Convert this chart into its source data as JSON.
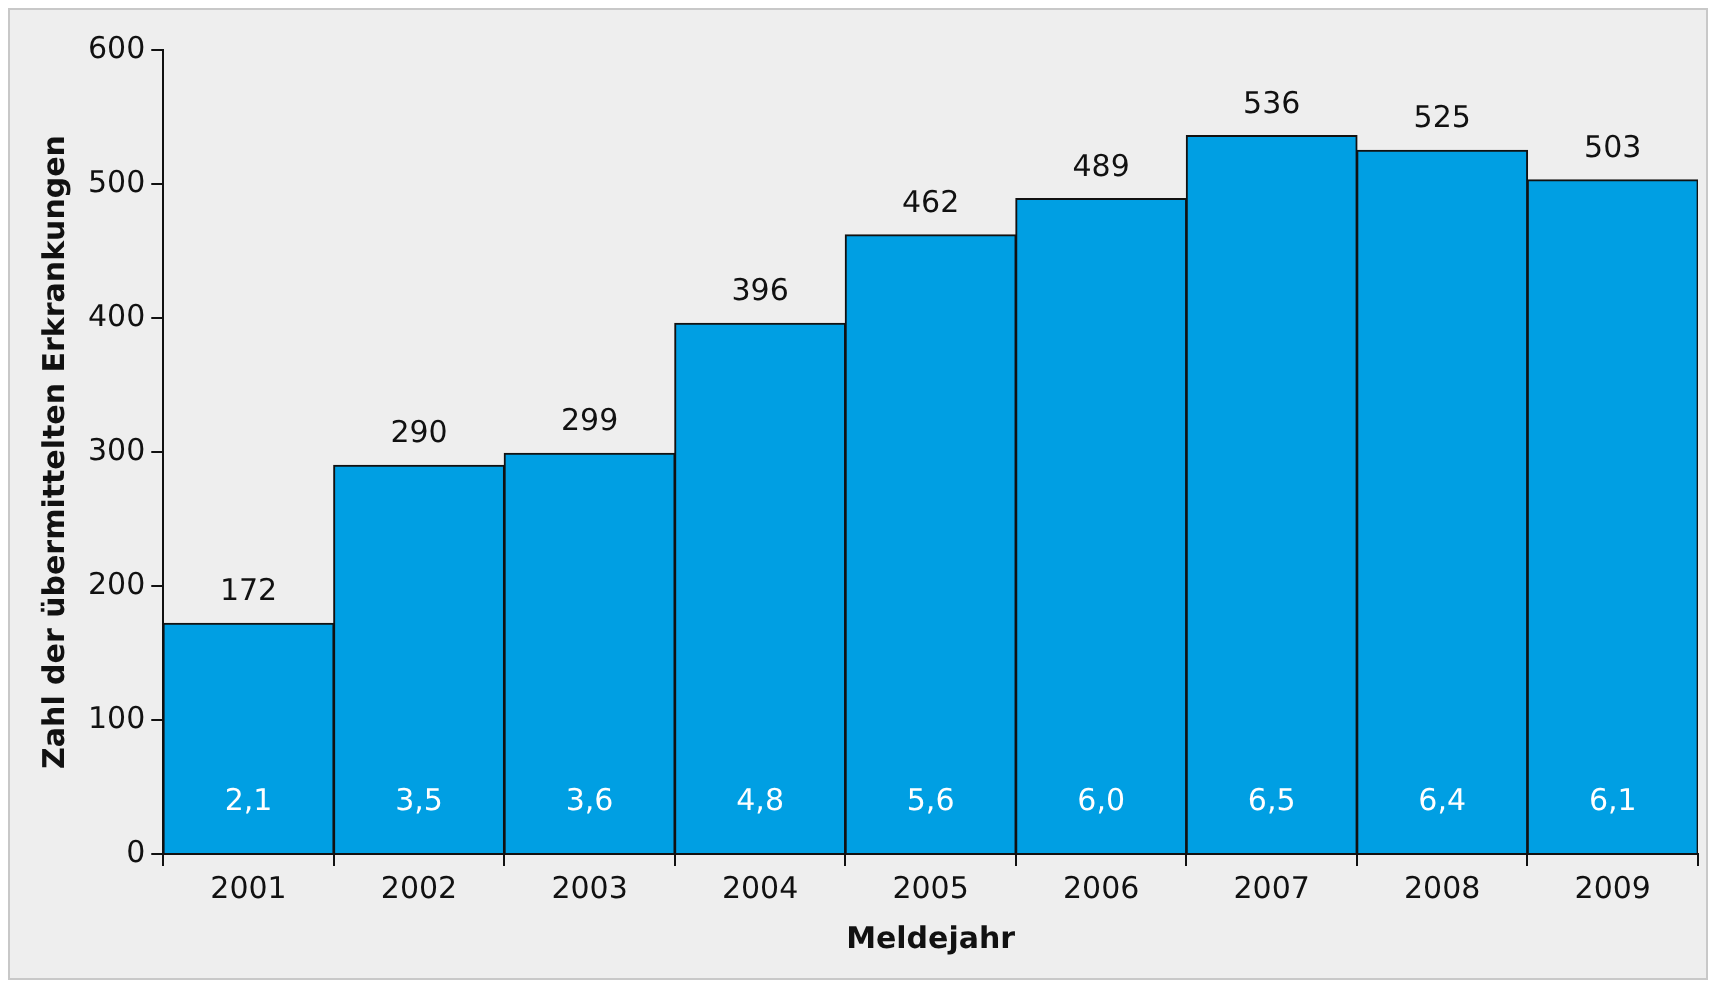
{
  "chart_data": {
    "type": "bar",
    "xlabel": "Meldejahr",
    "ylabel": "Zahl der übermittelten Erkrankungen",
    "categories": [
      "2001",
      "2002",
      "2003",
      "2004",
      "2005",
      "2006",
      "2007",
      "2008",
      "2009"
    ],
    "values": [
      172,
      290,
      299,
      396,
      462,
      489,
      536,
      525,
      503
    ],
    "color": "#009fe3",
    "ylim": [
      0,
      600
    ],
    "yticks": [
      0,
      100,
      200,
      300,
      400,
      500,
      600
    ],
    "grid": false,
    "legend": false,
    "data_labels": true,
    "annotations": [
      "2,1",
      "3,5",
      "3,6",
      "4,8",
      "5,6",
      "6,0",
      "6,5",
      "6,4",
      "6,1"
    ]
  }
}
